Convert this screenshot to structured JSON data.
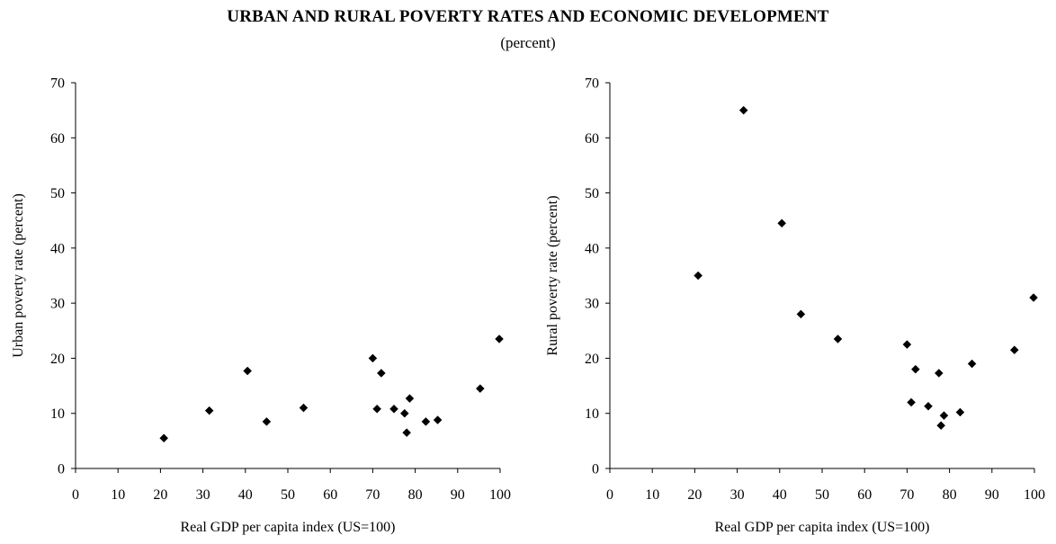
{
  "title": "URBAN AND RURAL POVERTY RATES AND ECONOMIC DEVELOPMENT",
  "subtitle": "(percent)",
  "chart_data": [
    {
      "type": "scatter",
      "xlabel": "Real GDP per capita index (US=100)",
      "ylabel": "Urban poverty rate (percent)",
      "xlim": [
        0,
        100
      ],
      "ylim": [
        0,
        70
      ],
      "xticks": [
        0,
        10,
        20,
        30,
        40,
        50,
        60,
        70,
        80,
        90,
        100
      ],
      "yticks": [
        0,
        10,
        20,
        30,
        40,
        50,
        60,
        70
      ],
      "grid": false,
      "marker": "diamond",
      "color": "#000000",
      "points": [
        {
          "x": 20.8,
          "y": 5.5
        },
        {
          "x": 31.5,
          "y": 10.5
        },
        {
          "x": 40.5,
          "y": 17.7
        },
        {
          "x": 45.0,
          "y": 8.5
        },
        {
          "x": 53.7,
          "y": 11.0
        },
        {
          "x": 70.0,
          "y": 20.0
        },
        {
          "x": 71.0,
          "y": 10.8
        },
        {
          "x": 72.0,
          "y": 17.3
        },
        {
          "x": 75.0,
          "y": 10.8
        },
        {
          "x": 77.5,
          "y": 10.0
        },
        {
          "x": 78.0,
          "y": 6.5
        },
        {
          "x": 78.7,
          "y": 12.7
        },
        {
          "x": 82.5,
          "y": 8.5
        },
        {
          "x": 85.3,
          "y": 8.8
        },
        {
          "x": 95.3,
          "y": 14.5
        },
        {
          "x": 99.8,
          "y": 23.5
        }
      ]
    },
    {
      "type": "scatter",
      "xlabel": "Real GDP per capita index (US=100)",
      "ylabel": "Rural poverty rate (percent)",
      "xlim": [
        0,
        100
      ],
      "ylim": [
        0,
        70
      ],
      "xticks": [
        0,
        10,
        20,
        30,
        40,
        50,
        60,
        70,
        80,
        90,
        100
      ],
      "yticks": [
        0,
        10,
        20,
        30,
        40,
        50,
        60,
        70
      ],
      "grid": false,
      "marker": "diamond",
      "color": "#000000",
      "points": [
        {
          "x": 20.8,
          "y": 35.0
        },
        {
          "x": 31.5,
          "y": 65.0
        },
        {
          "x": 40.5,
          "y": 44.5
        },
        {
          "x": 45.0,
          "y": 28.0
        },
        {
          "x": 53.7,
          "y": 23.5
        },
        {
          "x": 70.0,
          "y": 22.5
        },
        {
          "x": 71.0,
          "y": 12.0
        },
        {
          "x": 72.0,
          "y": 18.0
        },
        {
          "x": 75.0,
          "y": 11.3
        },
        {
          "x": 77.5,
          "y": 17.3
        },
        {
          "x": 78.0,
          "y": 7.8
        },
        {
          "x": 78.7,
          "y": 9.6
        },
        {
          "x": 82.5,
          "y": 10.2
        },
        {
          "x": 85.3,
          "y": 19.0
        },
        {
          "x": 95.3,
          "y": 21.5
        },
        {
          "x": 99.8,
          "y": 31.0
        }
      ]
    }
  ]
}
